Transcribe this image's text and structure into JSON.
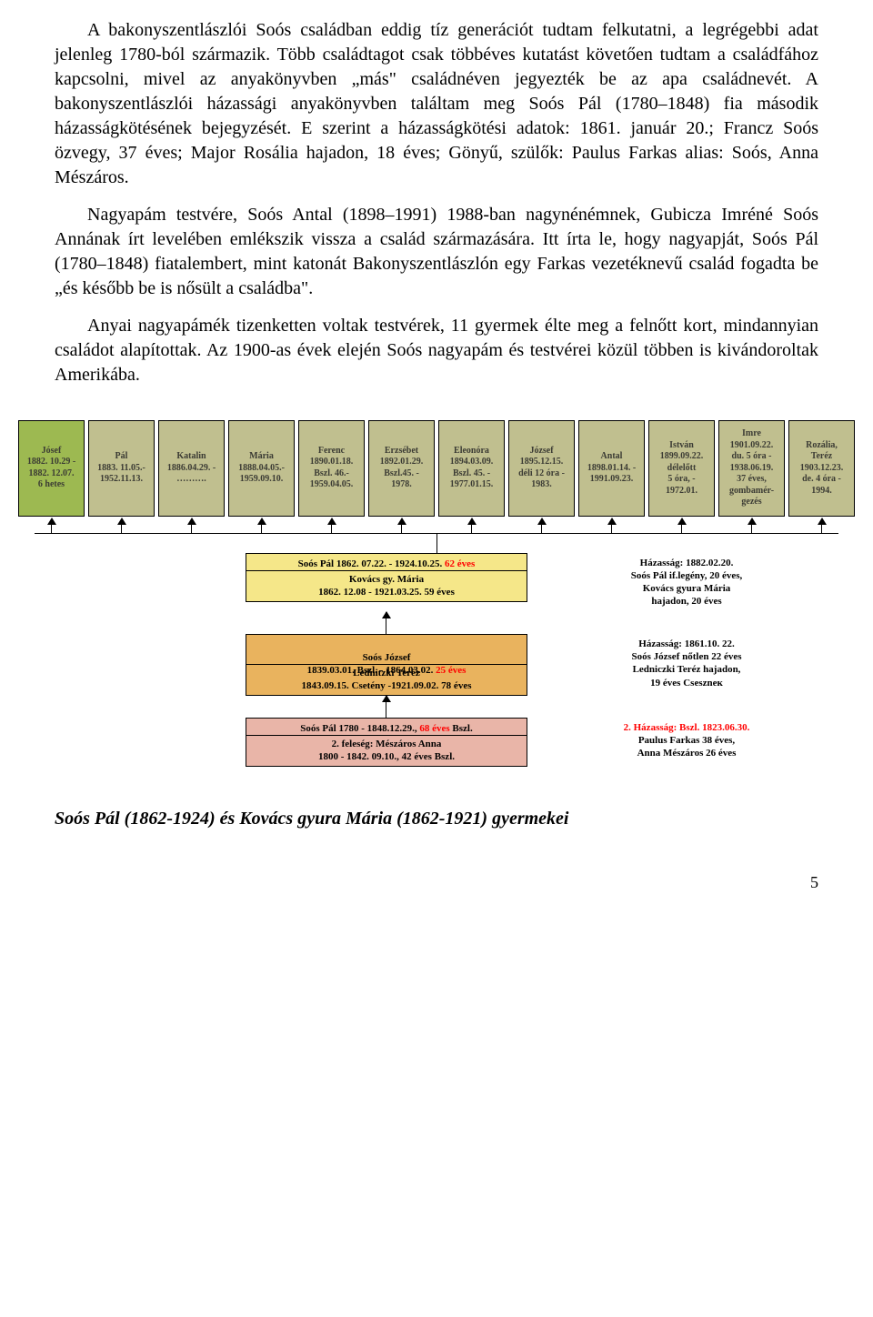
{
  "para1": "A bakonyszentlászlói Soós családban eddig tíz generációt tudtam felkutatni, a legrégebbi adat jelenleg 1780-ból származik. Több családtagot csak többéves kutatást követően tudtam a családfához kapcsolni, mivel az anyakönyvben „más\" családnéven jegyezték be az apa családnevét. A bakonyszentlászlói házassági anyakönyvben találtam meg Soós Pál (1780–1848) fia második házasságkötésének bejegyzését. E szerint a házasságkötési adatok: 1861. január 20.; Francz Soós özvegy, 37 éves; Major Rosália hajadon, 18 éves; Gönyű, szülők: Paulus Farkas alias: Soós, Anna Mészáros.",
  "para2": "Nagyapám testvére, Soós Antal (1898–1991) 1988-ban nagynénémnek, Gubicza Imréné Soós Annának írt levelében emlékszik vissza a család származására. Itt írta le, hogy nagyapját, Soós Pál (1780–1848) fiatalembert, mint katonát Bakonyszentlászlón egy Farkas vezetéknevű család fogadta be „és később be is nősült a családba\".",
  "para3": "Anyai nagyapámék tizenketten voltak testvérek, 11 gyermek élte meg a felnőtt kort, mindannyian családot alapítottak. Az 1900-as évek elején Soós nagyapám és testvérei közül többen is kivándoroltak Amerikába.",
  "children": [
    {
      "l1": "Jósef",
      "l2": "1882. 10.29 -",
      "l3": "1882. 12.07.",
      "l4": "6 hetes"
    },
    {
      "l1": "Pál",
      "l2": "1883. 11.05.-",
      "l3": "1952.11.13."
    },
    {
      "l1": "Katalin",
      "l2": "1886.04.29. -",
      "l3": "………."
    },
    {
      "l1": "Mária",
      "l2": "1888.04.05.-",
      "l3": "1959.09.10."
    },
    {
      "l1": "Ferenc",
      "l2": "1890.01.18.",
      "l3": "Bszl. 46.-",
      "l4": "1959.04.05."
    },
    {
      "l1": "Erzsébet",
      "l2": "1892.01.29.",
      "l3": "Bszl.45. -",
      "l4": "1978."
    },
    {
      "l1": "Eleonóra",
      "l2": "1894.03.09.",
      "l3": "Bszl. 45. -",
      "l4": "1977.01.15."
    },
    {
      "l1": "József",
      "l2": "1895.12.15.",
      "l3": "déli 12 óra -",
      "l4": "1983."
    },
    {
      "l1": "Antal",
      "l2": "1898.01.14. -",
      "l3": "1991.09.23."
    },
    {
      "l1": "István",
      "l2": "1899.09.22.",
      "l3": "délelőtt",
      "l4": "5 óra, -",
      "l5": "1972.01."
    },
    {
      "l1": "Imre",
      "l2": "1901.09.22.",
      "l3": "du. 5 óra -",
      "l4": "1938.06.19.",
      "l5": "37 éves,",
      "l6": "gombamér-",
      "l7": "gezés"
    },
    {
      "l1": "Rozália,",
      "l2": "Teréz",
      "l3": "1903.12.23.",
      "l4": "de. 4 óra -",
      "l5": "1994."
    }
  ],
  "gen1": {
    "left_top_a": "Soós Pál    1862. 07.22.  - 1924.10.25.  ",
    "left_top_b": "62 éves",
    "left_bot": "Kovács gy. Mária\n1862. 12.08  - 1921.03.25.      59 éves",
    "right": "Házasság: 1882.02.20.\nSoós Pál if.legény, 20 éves,\nKovács gyura Mária\nhajadon, 20 éves"
  },
  "gen2": {
    "left_top_a": "Soós József\n1839.03.01. Bszl. - 1864.03.02.       ",
    "left_top_b": "25 éves",
    "left_bot": "Lednitzki Teréz\n1843.09.15. Csetény -1921.09.02.   78 éves",
    "right": "Házasság: 1861.10. 22.\nSoós József nőtlen 22 éves\nLedniczki Teréz hajadon,\n19 éves Cseszneк"
  },
  "gen3": {
    "left_top_a": "Soós Pál     1780 - 1848.12.29., ",
    "left_top_b": "68 éves",
    "left_top_c": " Bszl.",
    "left_bot": "2. feleség: Mészáros Anna\n1800 - 1842. 09.10., 42 éves Bszl.",
    "right_a": "2. Házasság: Bszl. 1823.06.30.",
    "right_b": "Paulus Farkas 38 éves,\nAnna Mészáros 26 éves"
  },
  "caption": "Soós Pál (1862-1924) és Kovács gyura Mária (1862-1921) gyermekei",
  "pagenum": "5"
}
